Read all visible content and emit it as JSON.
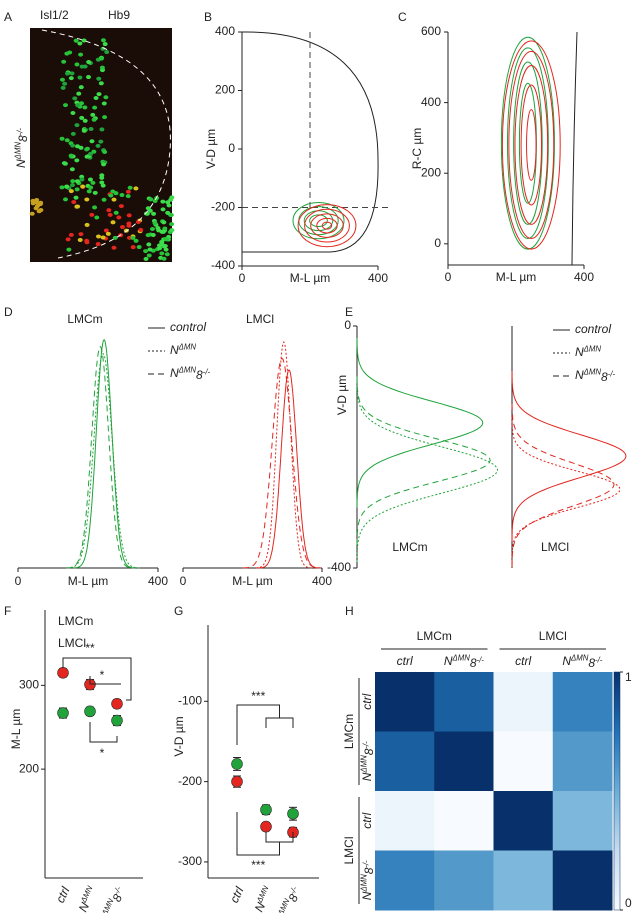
{
  "chart_data": [
    {
      "type": "image",
      "panel": "A",
      "labels": [
        {
          "text": "Isl1/2",
          "color": "#1fa33a"
        },
        {
          "text": "Hb9",
          "color": "#e3261f"
        }
      ],
      "genotype": [
        {
          "text": "N"
        },
        {
          "text": "ΔMN",
          "sup": true
        },
        {
          "text": "8"
        },
        {
          "text": "-/-",
          "sup": true
        }
      ]
    },
    {
      "type": "contour",
      "panel": "B",
      "xlabel": "M-L µm",
      "ylabel": "V-D µm",
      "xlim": [
        0,
        400
      ],
      "ylim": [
        -400,
        400
      ],
      "xticks": [
        0,
        400
      ],
      "yticks": [
        400,
        200,
        0,
        -200,
        -400
      ],
      "guides": {
        "x": 200,
        "y": -200
      },
      "series": [
        {
          "color": "#1fa33a",
          "cx": 225,
          "cy": -245,
          "rx": [
            75,
            58,
            42,
            26
          ],
          "ry": [
            62,
            48,
            34,
            20
          ]
        },
        {
          "color": "#e3261f",
          "cx": 250,
          "cy": -262,
          "rx": [
            85,
            66,
            48,
            30,
            14
          ],
          "ry": [
            72,
            56,
            40,
            25,
            12
          ]
        }
      ]
    },
    {
      "type": "contour",
      "panel": "C",
      "xlabel": "M-L µm",
      "ylabel": "R-C µm",
      "xlim": [
        0,
        400
      ],
      "ylim": [
        -60,
        600
      ],
      "xticks": [
        0,
        400
      ],
      "yticks": [
        0,
        200,
        400,
        600
      ],
      "series": [
        {
          "color": "#1fa33a",
          "cx": 235,
          "cy": 285,
          "rx": [
            78,
            60,
            42,
            25
          ],
          "ry": [
            300,
            270,
            230,
            170
          ]
        },
        {
          "color": "#e3261f",
          "cx": 245,
          "cy": 280,
          "rx": [
            85,
            66,
            48,
            30,
            14
          ],
          "ry": [
            295,
            265,
            225,
            170,
            100
          ]
        }
      ]
    },
    {
      "type": "density",
      "panel": "D",
      "orientation": "horizontal",
      "xlabel": "M-L µm",
      "xlim": [
        0,
        400
      ],
      "xticks": [
        0,
        400
      ],
      "legend": [
        {
          "label": [
            {
              "text": "control"
            }
          ],
          "dash": "solid"
        },
        {
          "label": [
            {
              "text": "N"
            },
            {
              "text": "ΔMN",
              "sup": true
            }
          ],
          "dash": "dotted"
        },
        {
          "label": [
            {
              "text": "N"
            },
            {
              "text": "ΔMN",
              "sup": true
            },
            {
              "text": "8"
            },
            {
              "text": "-/-",
              "sup": true
            }
          ],
          "dash": "dashed"
        }
      ],
      "groups": [
        {
          "title": "LMCm",
          "color": "#1fa33a",
          "series": [
            {
              "mean": 246,
              "sd": 22,
              "peak": 0.98
            },
            {
              "mean": 243,
              "sd": 26,
              "peak": 0.92
            },
            {
              "mean": 235,
              "sd": 24,
              "peak": 0.95
            }
          ]
        },
        {
          "title": "LMCl",
          "color": "#e3261f",
          "series": [
            {
              "mean": 305,
              "sd": 22,
              "peak": 0.85
            },
            {
              "mean": 290,
              "sd": 20,
              "peak": 0.97
            },
            {
              "mean": 285,
              "sd": 28,
              "peak": 0.9
            }
          ]
        }
      ]
    },
    {
      "type": "density",
      "panel": "E",
      "orientation": "vertical",
      "ylabel": "V-D µm",
      "ylim": [
        -400,
        0
      ],
      "yticks": [
        0,
        -400
      ],
      "legend": [
        {
          "label": [
            {
              "text": "control"
            }
          ],
          "dash": "solid"
        },
        {
          "label": [
            {
              "text": "N"
            },
            {
              "text": "ΔMN",
              "sup": true
            }
          ],
          "dash": "dotted"
        },
        {
          "label": [
            {
              "text": "N"
            },
            {
              "text": "ΔMN",
              "sup": true
            },
            {
              "text": "8"
            },
            {
              "text": "-/-",
              "sup": true
            }
          ],
          "dash": "dashed"
        }
      ],
      "groups": [
        {
          "title": "LMCm",
          "color": "#1fa33a",
          "series": [
            {
              "mean": -160,
              "sd": 35,
              "peak": 0.85
            },
            {
              "mean": -238,
              "sd": 38,
              "peak": 0.95
            },
            {
              "mean": -222,
              "sd": 35,
              "peak": 0.9
            }
          ]
        },
        {
          "title": "LMCl",
          "color": "#e3261f",
          "series": [
            {
              "mean": -215,
              "sd": 35,
              "peak": 0.95
            },
            {
              "mean": -270,
              "sd": 30,
              "peak": 0.9
            },
            {
              "mean": -262,
              "sd": 35,
              "peak": 0.85
            }
          ]
        }
      ]
    },
    {
      "type": "dot",
      "panel": "F",
      "ylabel": "M-L µm",
      "ylim": [
        70,
        390
      ],
      "yticks": [
        300,
        200
      ],
      "categories": [
        [
          {
            "text": "ctrl"
          }
        ],
        [
          {
            "text": "N"
          },
          {
            "text": "ΔMN",
            "sup": true
          }
        ],
        [
          {
            "text": "N"
          },
          {
            "text": "ΔMN",
            "sup": true
          },
          {
            "text": "8"
          },
          {
            "text": "-/-",
            "sup": true
          }
        ]
      ],
      "series": [
        {
          "name": "LMCm",
          "color": "#1fa33a",
          "values": [
            267,
            269,
            258
          ],
          "errors": [
            6,
            5,
            6
          ]
        },
        {
          "name": "LMCl",
          "color": "#e3261f",
          "values": [
            315,
            301,
            278
          ],
          "errors": [
            5,
            6,
            5
          ]
        }
      ],
      "annotations": [
        {
          "text": "**"
        },
        {
          "text": "*"
        },
        {
          "text": "*"
        }
      ]
    },
    {
      "type": "dot",
      "panel": "G",
      "ylabel": "V-D µm",
      "ylim": [
        -320,
        -5
      ],
      "yticks": [
        -100,
        -200,
        -300
      ],
      "categories": [
        [
          {
            "text": "ctrl"
          }
        ],
        [
          {
            "text": "N"
          },
          {
            "text": "ΔMN",
            "sup": true
          }
        ],
        [
          {
            "text": "N"
          },
          {
            "text": "ΔMN",
            "sup": true
          },
          {
            "text": "8"
          },
          {
            "text": "-/-",
            "sup": true
          }
        ]
      ],
      "series": [
        {
          "color": "#1fa33a",
          "values": [
            -178,
            -235,
            -240
          ],
          "errors": [
            8,
            6,
            8
          ]
        },
        {
          "color": "#e3261f",
          "values": [
            -200,
            -256,
            -263
          ],
          "errors": [
            7,
            5,
            6
          ]
        }
      ],
      "annotations": [
        {
          "text": "***"
        },
        {
          "text": "***"
        }
      ]
    },
    {
      "type": "heatmap",
      "panel": "H",
      "groups": [
        {
          "name": "LMCm",
          "labels": [
            [
              {
                "text": "ctrl"
              }
            ],
            [
              {
                "text": "N"
              },
              {
                "text": "ΔMN",
                "sup": true
              },
              {
                "text": "8"
              },
              {
                "text": "-/-",
                "sup": true
              }
            ]
          ]
        },
        {
          "name": "LMCl",
          "labels": [
            [
              {
                "text": "ctrl"
              }
            ],
            [
              {
                "text": "N"
              },
              {
                "text": "ΔMN",
                "sup": true
              },
              {
                "text": "8"
              },
              {
                "text": "-/-",
                "sup": true
              }
            ]
          ]
        }
      ],
      "values": [
        [
          1,
          0.82,
          0.05,
          0.68
        ],
        [
          0.82,
          1,
          0,
          0.58
        ],
        [
          0.05,
          0,
          1,
          0.45
        ],
        [
          0.68,
          0.58,
          0.45,
          1
        ]
      ],
      "zlim": [
        0,
        1
      ],
      "colorbar_ticks": [
        0,
        1
      ],
      "colormap": [
        "#f7fbff",
        "#c6dbef",
        "#6baed6",
        "#2171b5",
        "#08306b"
      ]
    }
  ]
}
